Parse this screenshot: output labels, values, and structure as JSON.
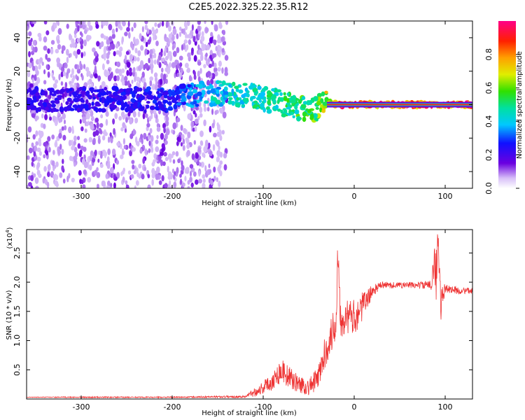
{
  "title": "C2E5.2022.325.22.35.R12",
  "colors": {
    "snr_line": "#ee3333",
    "scatter_light": "#c9a8f0",
    "scatter_dark": "#6600dd"
  },
  "colorbar": {
    "label": "Normalized spectral amplitude",
    "ticks": [
      "0.0",
      "0.2",
      "0.4",
      "0.6",
      "0.8"
    ],
    "tick_values": [
      0.0,
      0.2,
      0.4,
      0.6,
      0.8
    ],
    "range": [
      0,
      1
    ],
    "colormap": "rainbow (purple → blue → cyan → green → yellow → red → pink)"
  },
  "chart_data": [
    {
      "type": "heatmap",
      "xlabel": "Height of straight line (km)",
      "ylabel": "Frequency (Hz)",
      "xlim": [
        -360,
        130
      ],
      "ylim": [
        -50,
        50
      ],
      "xticks": [
        -300,
        -200,
        -100,
        0,
        100
      ],
      "xtick_labels": [
        "-300",
        "-200",
        "-100",
        "0",
        "100"
      ],
      "yticks": [
        -40,
        -20,
        0,
        20,
        40
      ],
      "ytick_labels": [
        "-40",
        "-20",
        "0",
        "20",
        "40"
      ],
      "ridge": {
        "x": [
          -360,
          -300,
          -200,
          -160,
          -120,
          -80,
          -55,
          -40,
          -30,
          -20,
          0,
          50,
          100,
          130
        ],
        "y": [
          3,
          3,
          3,
          7,
          6,
          1,
          -3,
          -2,
          2,
          0,
          0,
          0,
          0,
          0
        ],
        "amplitude": [
          0.25,
          0.25,
          0.3,
          0.45,
          0.5,
          0.55,
          0.6,
          0.65,
          0.75,
          0.9,
          0.95,
          0.95,
          0.95,
          0.95
        ]
      }
    },
    {
      "type": "line",
      "xlabel": "Height of straight line (km)",
      "ylabel": "SNR (10 * v/v)",
      "y_multiplier_label": "(x10",
      "y_multiplier_exp": "4",
      "y_multiplier_close": ")",
      "xlim": [
        -360,
        130
      ],
      "ylim": [
        0,
        2.9
      ],
      "xticks": [
        -300,
        -200,
        -100,
        0,
        100
      ],
      "xtick_labels": [
        "-300",
        "-200",
        "-100",
        "0",
        "100"
      ],
      "yticks": [
        0.5,
        1.0,
        1.5,
        2.0,
        2.5
      ],
      "ytick_labels": [
        "0.5",
        "1.0",
        "1.5",
        "2.0",
        "2.5"
      ],
      "series": [
        {
          "x": [
            -360,
            -300,
            -200,
            -120,
            -105,
            -90,
            -80,
            -70,
            -60,
            -50,
            -40,
            -30,
            -20,
            -18,
            -15,
            -10,
            0,
            10,
            20,
            30,
            50,
            70,
            85,
            88,
            90,
            92,
            95,
            100,
            115,
            130
          ],
          "y": [
            0.03,
            0.03,
            0.03,
            0.04,
            0.15,
            0.3,
            0.5,
            0.35,
            0.25,
            0.2,
            0.35,
            0.9,
            1.3,
            2.6,
            1.4,
            1.4,
            1.4,
            1.6,
            1.85,
            1.95,
            1.95,
            1.95,
            1.95,
            2.5,
            1.95,
            2.8,
            1.6,
            1.9,
            1.85,
            1.85
          ],
          "noise": [
            0.005,
            0.01,
            0.01,
            0.02,
            0.1,
            0.15,
            0.22,
            0.18,
            0.15,
            0.15,
            0.2,
            0.3,
            0.35,
            0.4,
            0.35,
            0.3,
            0.3,
            0.25,
            0.1,
            0.06,
            0.05,
            0.06,
            0.08,
            0.4,
            0.5,
            0.5,
            0.3,
            0.08,
            0.06,
            0.05
          ]
        }
      ]
    }
  ]
}
